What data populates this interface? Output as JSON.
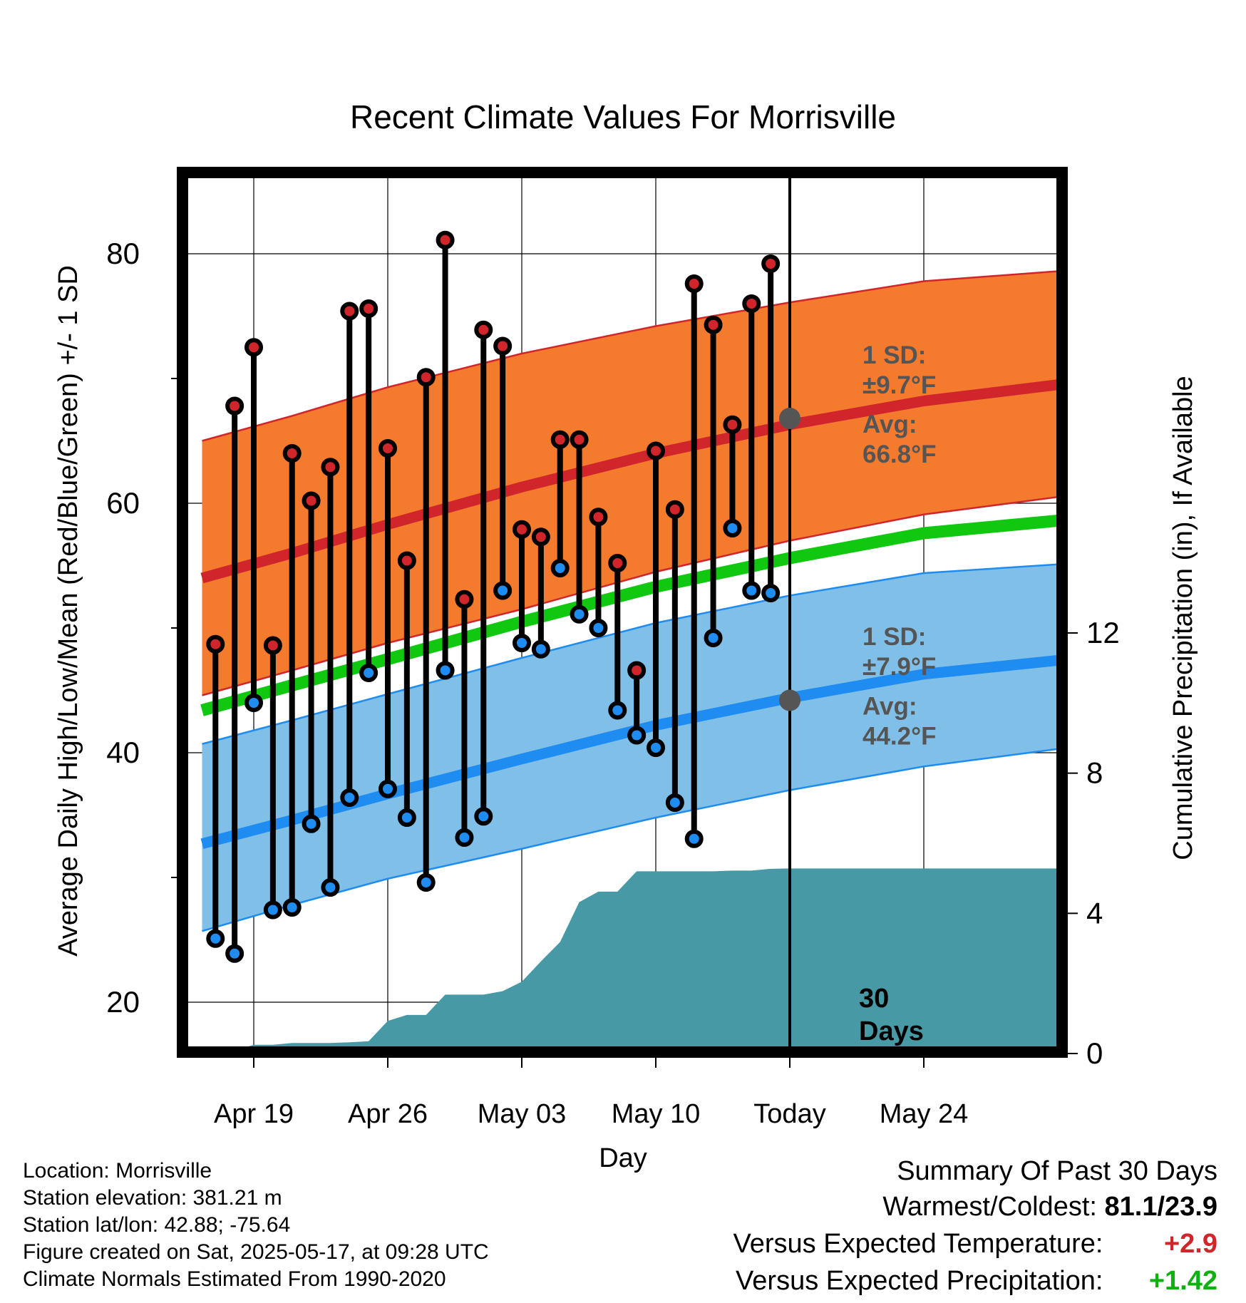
{
  "chart_data": {
    "type": "line",
    "title": "Recent Climate Values For Morrisville",
    "xlabel": "Day",
    "ylabel_left": "Average Daily High/Low/Mean (Red/Blue/Green) +/- 1 SD",
    "ylabel_right": "Cumulative Precipitation (in), If Available",
    "x_domain": [
      -3.5,
      42
    ],
    "x_ticks": [
      {
        "day": 0,
        "label": "Apr 19"
      },
      {
        "day": 7,
        "label": "Apr 26"
      },
      {
        "day": 14,
        "label": "May 03"
      },
      {
        "day": 21,
        "label": "May 10"
      },
      {
        "day": 28,
        "label": "Today"
      },
      {
        "day": 35,
        "label": "May 24"
      }
    ],
    "ylim_left": [
      16.3,
      80
    ],
    "y_ticks_left": [
      20,
      40,
      60,
      80
    ],
    "ylim_right": [
      0,
      20
    ],
    "y_ticks_right": [
      0,
      4,
      8,
      12
    ],
    "today_day": 28,
    "days_label": "30\nDays",
    "high_normal": {
      "x": [
        -2.7,
        2,
        7,
        14,
        21,
        28,
        35,
        42
      ],
      "mean": [
        54.0,
        56.0,
        58.3,
        61.3,
        64.0,
        66.3,
        68.2,
        69.5
      ],
      "upper": [
        65.0,
        67.0,
        69.3,
        72.0,
        74.2,
        76.1,
        77.8,
        78.6
      ],
      "lower": [
        44.6,
        46.6,
        48.8,
        51.5,
        54.5,
        57.0,
        59.1,
        60.5
      ]
    },
    "mean_normal": {
      "x": [
        -2.7,
        2,
        7,
        14,
        21,
        28,
        35,
        42
      ],
      "values": [
        43.4,
        45.4,
        47.5,
        50.5,
        53.3,
        55.6,
        57.6,
        58.6
      ]
    },
    "low_normal": {
      "x": [
        -2.7,
        2,
        7,
        14,
        21,
        28,
        35,
        42
      ],
      "mean": [
        32.7,
        34.6,
        36.7,
        39.5,
        42.2,
        44.4,
        46.3,
        47.4
      ],
      "upper": [
        40.7,
        42.6,
        44.7,
        47.6,
        50.4,
        52.6,
        54.4,
        55.1
      ],
      "lower": [
        25.7,
        27.8,
        29.9,
        32.3,
        34.8,
        37.0,
        38.9,
        40.3
      ]
    },
    "high_annotation": {
      "sd_label": "1 SD:",
      "sd_value": "±9.7°F",
      "avg_label": "Avg:",
      "avg_value": "66.8°F",
      "avg": 66.8
    },
    "low_annotation": {
      "sd_label": "1 SD:",
      "sd_value": "±7.9°F",
      "avg_label": "Avg:",
      "avg_value": "44.2°F",
      "avg": 44.2
    },
    "observations": [
      {
        "day": -2,
        "high": 48.7,
        "low": 25.1
      },
      {
        "day": -1,
        "high": 67.8,
        "low": 23.9
      },
      {
        "day": 0,
        "high": 72.5,
        "low": 44.0
      },
      {
        "day": 1,
        "high": 48.6,
        "low": 27.4
      },
      {
        "day": 2,
        "high": 64.0,
        "low": 27.6
      },
      {
        "day": 3,
        "high": 60.2,
        "low": 34.3
      },
      {
        "day": 4,
        "high": 62.9,
        "low": 29.2
      },
      {
        "day": 5,
        "high": 75.4,
        "low": 36.4
      },
      {
        "day": 6,
        "high": 75.6,
        "low": 46.4
      },
      {
        "day": 7,
        "high": 64.4,
        "low": 37.1
      },
      {
        "day": 8,
        "high": 55.4,
        "low": 34.8
      },
      {
        "day": 9,
        "high": 70.1,
        "low": 29.6
      },
      {
        "day": 10,
        "high": 81.1,
        "low": 46.6
      },
      {
        "day": 11,
        "high": 52.3,
        "low": 33.2
      },
      {
        "day": 12,
        "high": 73.9,
        "low": 34.9
      },
      {
        "day": 13,
        "high": 72.6,
        "low": 53.0
      },
      {
        "day": 14,
        "high": 57.9,
        "low": 48.8
      },
      {
        "day": 15,
        "high": 57.3,
        "low": 48.3
      },
      {
        "day": 16,
        "high": 65.1,
        "low": 54.8
      },
      {
        "day": 17,
        "high": 65.1,
        "low": 51.1
      },
      {
        "day": 18,
        "high": 58.9,
        "low": 50.0
      },
      {
        "day": 19,
        "high": 55.2,
        "low": 43.4
      },
      {
        "day": 20,
        "high": 46.6,
        "low": 41.4
      },
      {
        "day": 21,
        "high": 64.2,
        "low": 40.4
      },
      {
        "day": 22,
        "high": 59.5,
        "low": 36.0
      },
      {
        "day": 23,
        "high": 77.6,
        "low": 33.1
      },
      {
        "day": 24,
        "high": 74.3,
        "low": 49.2
      },
      {
        "day": 25,
        "high": 66.3,
        "low": 58.0
      },
      {
        "day": 26,
        "high": 76.0,
        "low": 53.0
      },
      {
        "day": 27,
        "high": 79.2,
        "low": 52.8
      }
    ],
    "precipitation": {
      "x": [
        -2.4,
        -1.5,
        0,
        1,
        2,
        3,
        4,
        5,
        6,
        7,
        8,
        9,
        10,
        11,
        12,
        13,
        14,
        15,
        16,
        17,
        18,
        19,
        20,
        21,
        22,
        23,
        24,
        25,
        26,
        27,
        28,
        35,
        42
      ],
      "values": [
        0,
        0,
        0.25,
        0.25,
        0.3,
        0.3,
        0.3,
        0.32,
        0.35,
        0.93,
        1.1,
        1.1,
        1.68,
        1.68,
        1.68,
        1.78,
        2.05,
        2.63,
        3.18,
        4.32,
        4.62,
        4.62,
        5.2,
        5.2,
        5.2,
        5.2,
        5.2,
        5.22,
        5.22,
        5.27,
        5.28,
        5.28,
        5.28
      ]
    }
  },
  "info": {
    "location": "Location: Morrisville",
    "elevation": "Station elevation: 381.21 m",
    "latlon": "Station lat/lon: 42.88; -75.64",
    "created": "Figure created on Sat, 2025-05-17, at 09:28 UTC",
    "normals": "Climate Normals Estimated From 1990-2020"
  },
  "summary": {
    "title": "Summary Of Past 30 Days",
    "warm_cold_label": "Warmest/Coldest:",
    "warm_cold_value": "81.1/23.9",
    "temp_label": "Versus Expected Temperature:",
    "temp_value": "+2.9",
    "precip_label": "Versus Expected Precipitation:",
    "precip_value": "+1.42"
  },
  "colors": {
    "high_band": "#f47a2e",
    "high_line": "#d0262b",
    "low_band": "#80c0e8",
    "low_line": "#1e8cf0",
    "mean_line": "#10c810",
    "precip": "#479aa5",
    "high_marker": "#d0262b",
    "low_marker": "#1e8cf0",
    "annotation": "#555555",
    "temp_anomaly": "#d0262b",
    "precip_anomaly": "#10b010"
  }
}
